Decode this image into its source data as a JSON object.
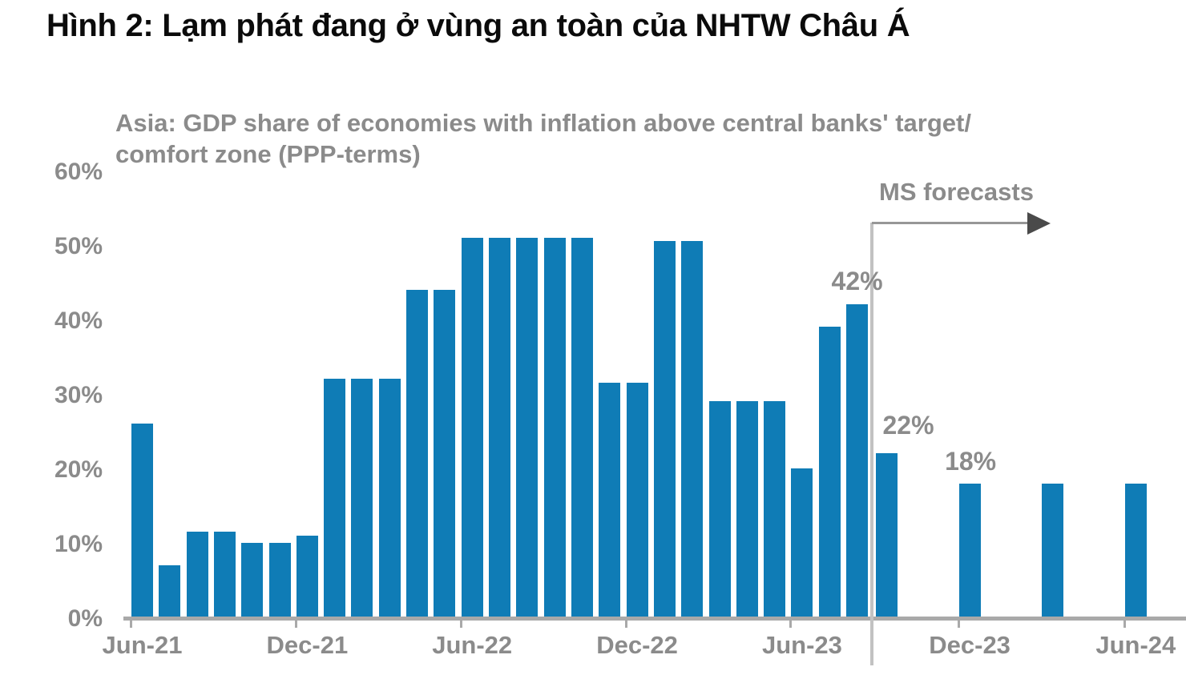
{
  "figure": {
    "title": "Hình 2: Lạm phát đang ở vùng an toàn của NHTW Châu Á"
  },
  "chart_data": {
    "type": "bar",
    "title": "Asia: GDP share of economies with inflation above central banks' target/ comfort zone (PPP-terms)",
    "unit": "%",
    "ylim": [
      0,
      60
    ],
    "grid": false,
    "legend_position": "none",
    "y_tick_labels": [
      "60%",
      "50%",
      "40%",
      "30%",
      "20%",
      "10%",
      "0%"
    ],
    "x_tick_labels": [
      "Jun-21",
      "Dec-21",
      "Jun-22",
      "Dec-22",
      "Jun-23",
      "Dec-23",
      "Jun-24"
    ],
    "x": [
      "Jun-21",
      "Jul-21",
      "Aug-21",
      "Sep-21",
      "Oct-21",
      "Nov-21",
      "Dec-21",
      "Jan-22",
      "Feb-22",
      "Mar-22",
      "Apr-22",
      "May-22",
      "Jun-22",
      "Jul-22",
      "Aug-22",
      "Sep-22",
      "Oct-22",
      "Nov-22",
      "Dec-22",
      "Jan-23",
      "Feb-23",
      "Mar-23",
      "Apr-23",
      "May-23",
      "Jun-23",
      "Jul-23",
      "Aug-23",
      "Sep-23",
      "Dec-23",
      "Mar-24",
      "Jun-24"
    ],
    "values": [
      26,
      7,
      11.5,
      11.5,
      10,
      10,
      11,
      32,
      32,
      32,
      44,
      44,
      51,
      51,
      51,
      51,
      51,
      31.5,
      31.5,
      50.5,
      50.5,
      29,
      29,
      29,
      20,
      39,
      42,
      22,
      18,
      18,
      18
    ],
    "forecast_flags": [
      false,
      false,
      false,
      false,
      false,
      false,
      false,
      false,
      false,
      false,
      false,
      false,
      false,
      false,
      false,
      false,
      false,
      false,
      false,
      false,
      false,
      false,
      false,
      false,
      false,
      false,
      false,
      true,
      true,
      true,
      true
    ],
    "forecast_label": "MS forecasts",
    "data_labels": [
      {
        "text": "42%",
        "bar": "Aug-23"
      },
      {
        "text": "22%",
        "bar": "Sep-23"
      },
      {
        "text": "18%",
        "bar": "Dec-23"
      }
    ],
    "colors": {
      "bar": "#0f7cb6",
      "gray_text": "#8b8b8b",
      "axis": "#a9a9a9",
      "divider": "#c2c2c2",
      "arrow": "#979797",
      "arrowhead": "#4a4a4a"
    }
  }
}
